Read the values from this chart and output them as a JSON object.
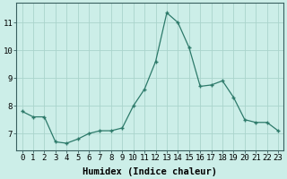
{
  "x": [
    0,
    1,
    2,
    3,
    4,
    5,
    6,
    7,
    8,
    9,
    10,
    11,
    12,
    13,
    14,
    15,
    16,
    17,
    18,
    19,
    20,
    21,
    22,
    23
  ],
  "y": [
    7.8,
    7.6,
    7.6,
    6.7,
    6.65,
    6.8,
    7.0,
    7.1,
    7.1,
    7.2,
    8.0,
    8.6,
    9.6,
    11.35,
    11.0,
    10.1,
    8.7,
    8.75,
    8.9,
    8.3,
    7.5,
    7.4,
    7.4,
    7.1
  ],
  "line_color": "#2d7a6a",
  "marker_color": "#2d7a6a",
  "bg_color": "#cceee8",
  "grid_color": "#aad4cc",
  "xlabel": "Humidex (Indice chaleur)",
  "xlim": [
    -0.5,
    23.5
  ],
  "ylim": [
    6.4,
    11.7
  ],
  "yticks": [
    7,
    8,
    9,
    10,
    11
  ],
  "xticks": [
    0,
    1,
    2,
    3,
    4,
    5,
    6,
    7,
    8,
    9,
    10,
    11,
    12,
    13,
    14,
    15,
    16,
    17,
    18,
    19,
    20,
    21,
    22,
    23
  ],
  "xtick_labels": [
    "0",
    "1",
    "2",
    "3",
    "4",
    "5",
    "6",
    "7",
    "8",
    "9",
    "10",
    "11",
    "12",
    "13",
    "14",
    "15",
    "16",
    "17",
    "18",
    "19",
    "20",
    "21",
    "22",
    "23"
  ],
  "tick_fontsize": 6.5,
  "xlabel_fontsize": 7.5
}
